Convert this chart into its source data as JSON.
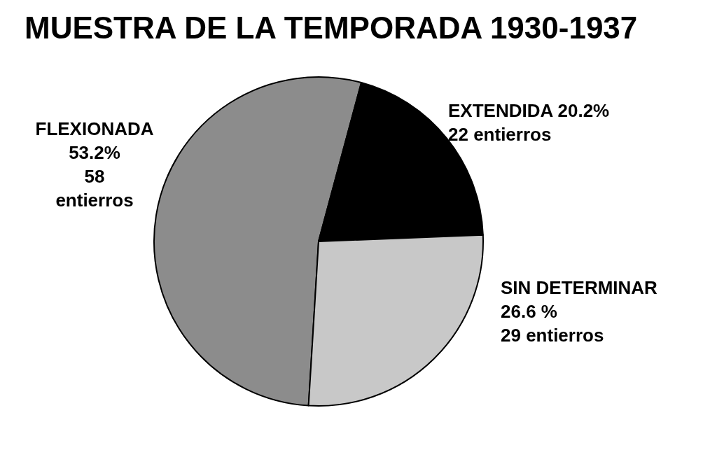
{
  "chart_data": {
    "type": "pie",
    "title": "MUESTRA DE LA TEMPORADA 1930-1937",
    "categories": [
      "FLEXIONADA",
      "EXTENDIDA",
      "SIN DETERMINAR"
    ],
    "values": [
      58,
      22,
      29
    ],
    "value_labels": [
      "53.2%\n58\nentierros",
      "20.2%\n22 entierros",
      "26.6 %\n29 entierros"
    ],
    "colors": [
      "#8c8c8c",
      "#000000",
      "#c8c8c8"
    ],
    "legend": false
  }
}
